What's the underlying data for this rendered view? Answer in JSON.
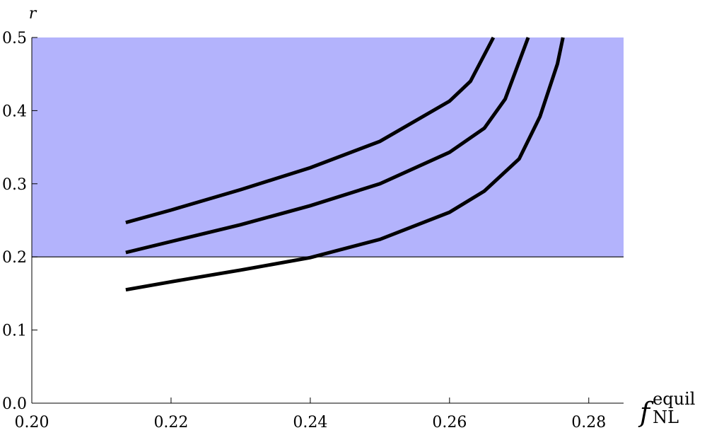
{
  "chart_data": {
    "type": "line",
    "y_label": "r",
    "x_label": "f",
    "x_label_sub": "NL",
    "x_label_sup": "equil",
    "xlim": [
      0.2,
      0.285
    ],
    "ylim": [
      0,
      0.5
    ],
    "xticks": [
      {
        "value": 0.2,
        "label": "0.20"
      },
      0.22,
      0.24,
      0.26,
      0.28
    ],
    "yticks": [
      {
        "value": 0,
        "label": "0.0"
      },
      0.1,
      0.2,
      0.3,
      0.4,
      0.5
    ],
    "band": {
      "from": 0.2,
      "to": 0.5,
      "color": "#b3b3fc"
    },
    "series": [
      {
        "color": "#000000",
        "x": [
          0.2135,
          0.22,
          0.23,
          0.24,
          0.25,
          0.26,
          0.263,
          0.2663
        ],
        "values": [
          0.247,
          0.264,
          0.292,
          0.322,
          0.358,
          0.413,
          0.44,
          0.5
        ]
      },
      {
        "color": "#000000",
        "x": [
          0.2135,
          0.22,
          0.23,
          0.24,
          0.25,
          0.26,
          0.265,
          0.268,
          0.2713
        ],
        "values": [
          0.206,
          0.221,
          0.244,
          0.27,
          0.3,
          0.343,
          0.376,
          0.416,
          0.5
        ]
      },
      {
        "color": "#000000",
        "x": [
          0.2135,
          0.22,
          0.23,
          0.24,
          0.25,
          0.26,
          0.265,
          0.27,
          0.273,
          0.2755,
          0.2763
        ],
        "values": [
          0.155,
          0.166,
          0.182,
          0.199,
          0.224,
          0.261,
          0.29,
          0.334,
          0.392,
          0.464,
          0.5
        ]
      }
    ]
  }
}
